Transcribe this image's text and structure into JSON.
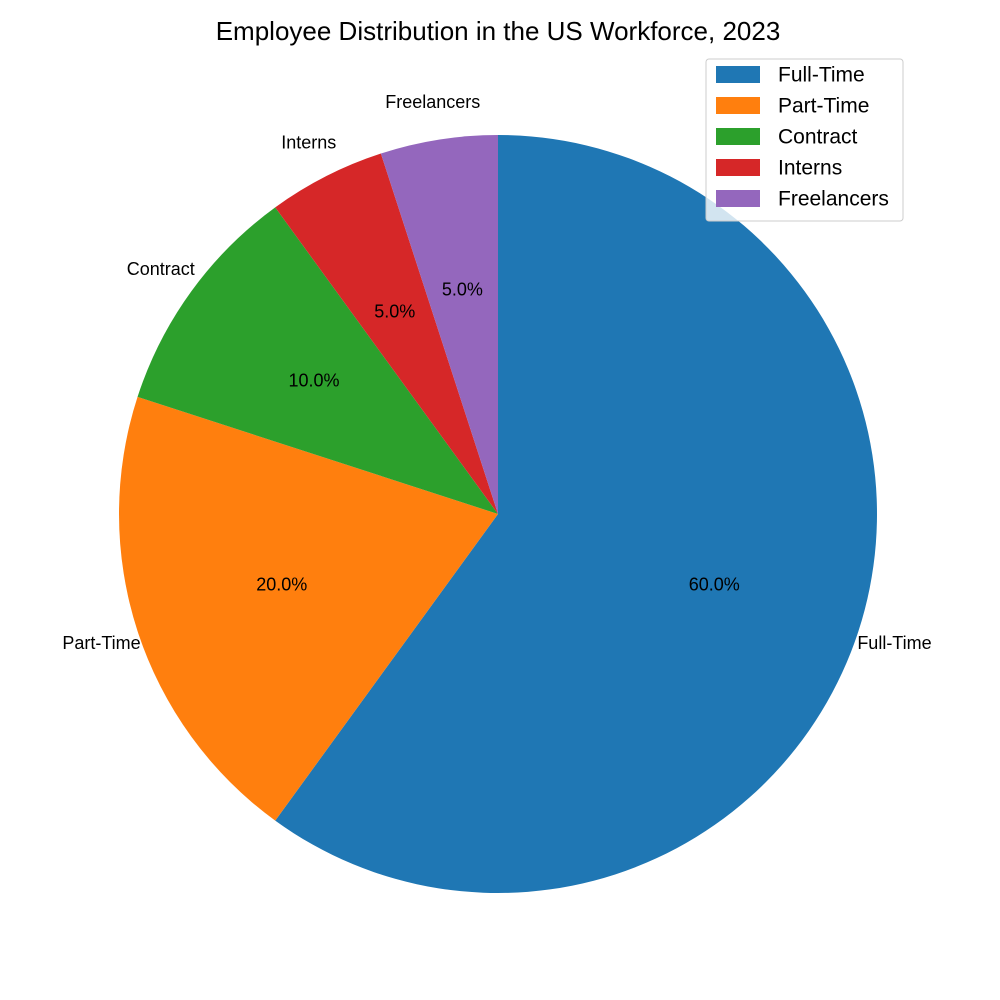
{
  "chart_data": {
    "type": "pie",
    "title": "Employee Distribution in the US Workforce, 2023",
    "categories": [
      "Full-Time",
      "Part-Time",
      "Contract",
      "Interns",
      "Freelancers"
    ],
    "values": [
      60,
      20,
      10,
      5,
      5
    ],
    "percent_labels": [
      "60.0%",
      "20.0%",
      "10.0%",
      "5.0%",
      "5.0%"
    ],
    "colors": [
      "#1f77b4",
      "#ff7f0e",
      "#2ca02c",
      "#d62728",
      "#9467bd"
    ],
    "start_angle": "top (12 o'clock)",
    "direction": "clockwise",
    "legend_position": "top-right"
  }
}
